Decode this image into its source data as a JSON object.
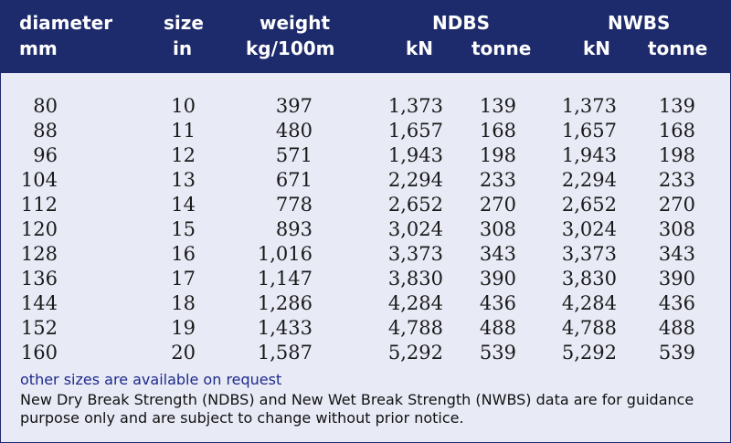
{
  "headers": {
    "diameter": "diameter",
    "diameter_unit": "mm",
    "size": "size",
    "size_unit": "in",
    "weight": "weight",
    "weight_unit": "kg/100m",
    "ndbs": "NDBS",
    "nwbs": "NWBS",
    "kn": "kN",
    "tonne": "tonne"
  },
  "rows": [
    {
      "diameter": "80",
      "size": "10",
      "weight": "397",
      "ndbs_kn": "1,373",
      "ndbs_tonne": "139",
      "nwbs_kn": "1,373",
      "nwbs_tonne": "139"
    },
    {
      "diameter": "88",
      "size": "11",
      "weight": "480",
      "ndbs_kn": "1,657",
      "ndbs_tonne": "168",
      "nwbs_kn": "1,657",
      "nwbs_tonne": "168"
    },
    {
      "diameter": "96",
      "size": "12",
      "weight": "571",
      "ndbs_kn": "1,943",
      "ndbs_tonne": "198",
      "nwbs_kn": "1,943",
      "nwbs_tonne": "198"
    },
    {
      "diameter": "104",
      "size": "13",
      "weight": "671",
      "ndbs_kn": "2,294",
      "ndbs_tonne": "233",
      "nwbs_kn": "2,294",
      "nwbs_tonne": "233"
    },
    {
      "diameter": "112",
      "size": "14",
      "weight": "778",
      "ndbs_kn": "2,652",
      "ndbs_tonne": "270",
      "nwbs_kn": "2,652",
      "nwbs_tonne": "270"
    },
    {
      "diameter": "120",
      "size": "15",
      "weight": "893",
      "ndbs_kn": "3,024",
      "ndbs_tonne": "308",
      "nwbs_kn": "3,024",
      "nwbs_tonne": "308"
    },
    {
      "diameter": "128",
      "size": "16",
      "weight": "1,016",
      "ndbs_kn": "3,373",
      "ndbs_tonne": "343",
      "nwbs_kn": "3,373",
      "nwbs_tonne": "343"
    },
    {
      "diameter": "136",
      "size": "17",
      "weight": "1,147",
      "ndbs_kn": "3,830",
      "ndbs_tonne": "390",
      "nwbs_kn": "3,830",
      "nwbs_tonne": "390"
    },
    {
      "diameter": "144",
      "size": "18",
      "weight": "1,286",
      "ndbs_kn": "4,284",
      "ndbs_tonne": "436",
      "nwbs_kn": "4,284",
      "nwbs_tonne": "436"
    },
    {
      "diameter": "152",
      "size": "19",
      "weight": "1,433",
      "ndbs_kn": "4,788",
      "ndbs_tonne": "488",
      "nwbs_kn": "4,788",
      "nwbs_tonne": "488"
    },
    {
      "diameter": "160",
      "size": "20",
      "weight": "1,587",
      "ndbs_kn": "5,292",
      "ndbs_tonne": "539",
      "nwbs_kn": "5,292",
      "nwbs_tonne": "539"
    }
  ],
  "notes": {
    "availability": "other sizes are available on request",
    "disclaimer": "New Dry Break Strength (NDBS) and New Wet Break Strength (NWBS) data are for guidance purpose only and are subject to change without prior notice."
  },
  "colors": {
    "header_bg": "#1d2a6b",
    "panel_bg": "#e8eaf6",
    "note_accent": "#1d2a8a"
  }
}
